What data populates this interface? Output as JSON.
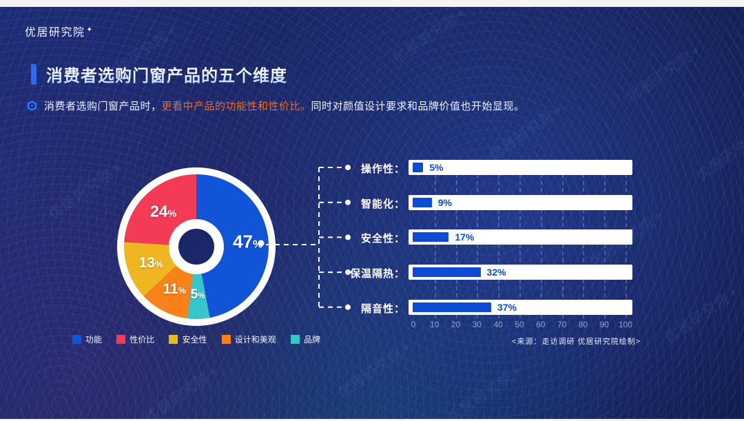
{
  "brand": {
    "logo": "优居研究院",
    "sparkle": "✦",
    "watermark": "优居研究院"
  },
  "header": {
    "title": "消费者选购门窗产品的五个维度"
  },
  "intro": {
    "pre": "消费者选购门窗产品时，",
    "highlight": "更看中产品的功能性和性价比。",
    "post": "同时对颜值设计要求和品牌价值也开始显现。"
  },
  "source_note": "<来源：走访调研 优居研究院绘制>",
  "colors": {
    "accent_blue": "#2e6bf0",
    "highlight_orange": "#e86c2a",
    "bar_blue": "#0d4bd3",
    "track_white": "#ffffff",
    "tick_gray": "#99a2c6"
  },
  "chart_data": [
    {
      "type": "pie",
      "donut": true,
      "unit": "%",
      "slices_clockwise_from_top": [
        {
          "label": "功能",
          "value": 47,
          "color": "#1254d8"
        },
        {
          "label": "品牌",
          "value": 5,
          "color": "#38c6cd"
        },
        {
          "label": "设计和美观",
          "value": 11,
          "color": "#f8821a"
        },
        {
          "label": "安全性",
          "value": 13,
          "color": "#eeb722"
        },
        {
          "label": "性价比",
          "value": 24,
          "color": "#f43b56"
        }
      ],
      "legend": [
        {
          "label": "功能",
          "color": "#1254d8"
        },
        {
          "label": "性价比",
          "color": "#f43b56"
        },
        {
          "label": "安全性",
          "color": "#eeb722"
        },
        {
          "label": "设计和美观",
          "color": "#f8821a"
        },
        {
          "label": "品牌",
          "color": "#38c6cd"
        }
      ],
      "legend_position": "bottom"
    },
    {
      "type": "bar",
      "orientation": "horizontal",
      "categories": [
        "操作性",
        "智能化",
        "安全性",
        "保温隔热",
        "隔音性"
      ],
      "label_suffix": "：",
      "values": [
        5,
        9,
        17,
        32,
        37
      ],
      "value_labels": [
        "5%",
        "9%",
        "17%",
        "32%",
        "37%"
      ],
      "xlim": [
        0,
        100
      ],
      "xticks": [
        0,
        10,
        20,
        30,
        40,
        50,
        60,
        70,
        80,
        90,
        100
      ],
      "bar_color": "#0d4bd3",
      "grid": "dashed-vertical"
    }
  ]
}
